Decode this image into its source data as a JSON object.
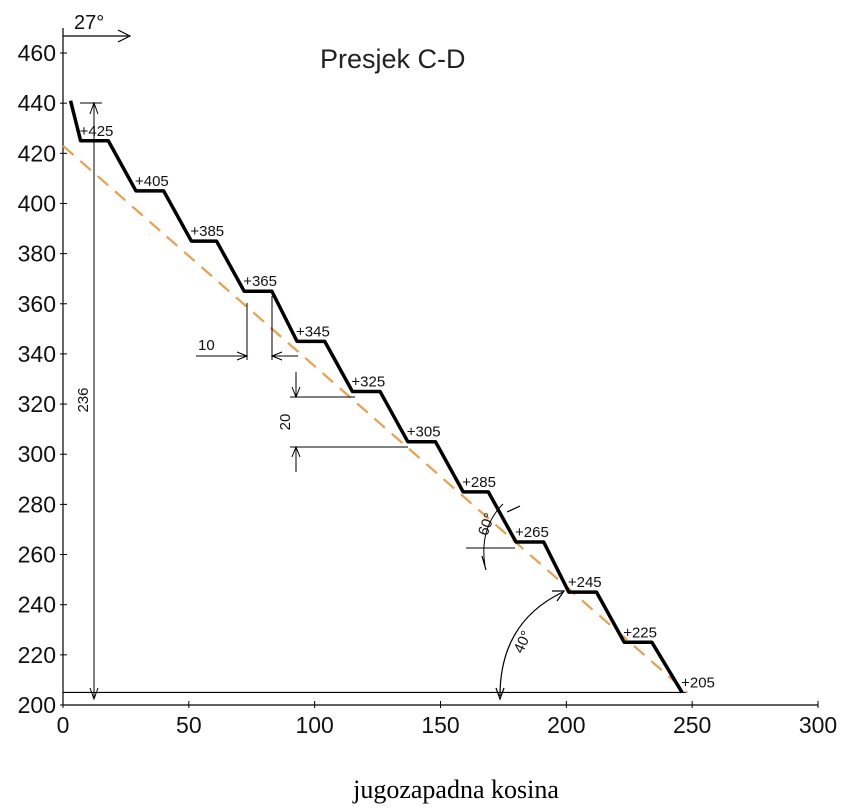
{
  "title": "Presjek C-D",
  "caption": "jugozapadna kosina",
  "direction_label": "27°",
  "chart_data": {
    "type": "line",
    "xlim": [
      0,
      300
    ],
    "ylim": [
      200,
      460
    ],
    "x_ticks": [
      0,
      50,
      100,
      150,
      200,
      250,
      300
    ],
    "y_ticks": [
      200,
      220,
      240,
      260,
      280,
      300,
      320,
      340,
      360,
      380,
      400,
      420,
      440,
      460
    ],
    "profile": [
      [
        3,
        441
      ],
      [
        7,
        425
      ],
      [
        18,
        425
      ],
      [
        29,
        405
      ],
      [
        40,
        405
      ],
      [
        51,
        385
      ],
      [
        61,
        385
      ],
      [
        72,
        365
      ],
      [
        83,
        365
      ],
      [
        93,
        345
      ],
      [
        104,
        345
      ],
      [
        115,
        325
      ],
      [
        126,
        325
      ],
      [
        137,
        305
      ],
      [
        148,
        305
      ],
      [
        159,
        285
      ],
      [
        169,
        285
      ],
      [
        180,
        265
      ],
      [
        191,
        265
      ],
      [
        201,
        245
      ],
      [
        212,
        245
      ],
      [
        223,
        225
      ],
      [
        234,
        225
      ],
      [
        246,
        205
      ]
    ],
    "slope_line": [
      [
        0,
        423
      ],
      [
        248,
        205
      ]
    ],
    "base_line": [
      [
        0,
        205
      ],
      [
        248,
        205
      ]
    ],
    "level_labels": [
      "+425",
      "+405",
      "+385",
      "+365",
      "+345",
      "+325",
      "+305",
      "+285",
      "+265",
      "+245",
      "+225",
      "+205"
    ],
    "total_height_label": "236",
    "bench_width_label": "10",
    "bench_height_label": "20",
    "face_angle_label": "60°",
    "slope_angle_label": "40°",
    "colors": {
      "profile": "#000000",
      "slope": "#E8A04B",
      "dimension": "#000000"
    }
  }
}
